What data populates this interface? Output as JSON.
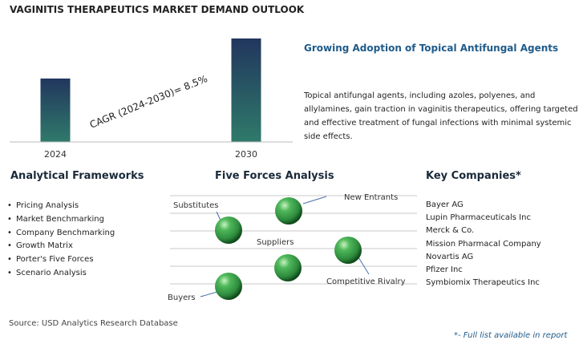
{
  "title": "VAGINITIS THERAPEUTICS MARKET DEMAND OUTLOOK",
  "chart_data": {
    "type": "bar",
    "categories": [
      "2024",
      "2030"
    ],
    "values": [
      1.0,
      1.631
    ],
    "annotation": "CAGR (2024-2030)=  8.5%",
    "grid": false,
    "colors": {
      "bar_top": "#22365e",
      "bar_bottom": "#2f7a6a"
    }
  },
  "headline": "Growing Adoption of Topical Antifungal Agents",
  "description": "Topical antifungal agents, including azoles, polyenes, and allylamines, gain traction in vaginitis therapeutics, offering targeted and effective treatment of fungal infections with minimal systemic side effects.",
  "analytical_frameworks": {
    "title": "Analytical Frameworks",
    "items": [
      "Pricing Analysis",
      "Market Benchmarking",
      "Company Benchmarking",
      "Growth Matrix",
      "Porter's Five Forces",
      "Scenario Analysis"
    ]
  },
  "five_forces": {
    "title": "Five Forces Analysis",
    "labels": {
      "substitutes": "Substitutes",
      "new_entrants": "New Entrants",
      "suppliers": "Suppliers",
      "competitive_rivalry": "Competitive Rivalry",
      "buyers": "Buyers"
    },
    "sphere_color": "#2e8b3e"
  },
  "key_companies": {
    "title": "Key Companies*",
    "items": [
      "Bayer AG",
      "Lupin Pharmaceuticals Inc",
      "Merck & Co.",
      "Mission Pharmacal Company",
      "Novartis AG",
      "Pfizer Inc",
      "Symbiomix Therapeutics Inc"
    ]
  },
  "source": "Source: USD Analytics Research Database",
  "footnote": "*- Full list available in report"
}
